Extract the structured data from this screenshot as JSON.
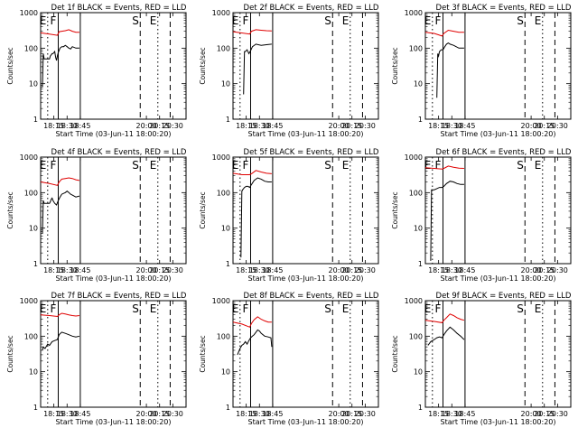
{
  "chart_data": {
    "type": "line",
    "log_y": true,
    "ylim": [
      1,
      1000
    ],
    "y_ticks": [
      1,
      10,
      100,
      1000
    ],
    "ylabel": "Counts/sec",
    "xlabel": "Start Time (03-Jun-11 18:00:20)",
    "x_tick_labels": [
      "18:15",
      "18:30",
      "18:45",
      "20:00",
      "20:15",
      "20:30"
    ],
    "x_tick_minutes": [
      15,
      30,
      45,
      120,
      135,
      150
    ],
    "xlim_minutes": [
      0,
      165
    ],
    "legend": "BLACK = Events, RED = LLD",
    "series_colors": {
      "Events": "#000000",
      "LLD": "#e00000"
    },
    "markers": [
      {
        "label": "E",
        "minute": 8,
        "style": "dotted"
      },
      {
        "label": "F",
        "minute": 20,
        "style": "solid"
      },
      {
        "label": "S",
        "minute": 113,
        "style": "dashed"
      },
      {
        "label": "E",
        "minute": 133,
        "style": "dotted"
      },
      {
        "label": "",
        "minute": 147,
        "style": "dashed"
      }
    ],
    "panels": [
      {
        "title": "Det 1f",
        "lld": {
          "x": [
            0,
            10,
            19,
            21,
            24,
            28,
            32,
            36,
            40,
            44
          ],
          "y": [
            270,
            250,
            230,
            290,
            300,
            310,
            330,
            300,
            280,
            280
          ]
        },
        "events": {
          "x": [
            2,
            3,
            4,
            10,
            11,
            13,
            14,
            16,
            17,
            18,
            19,
            20,
            22,
            24,
            26,
            28,
            30,
            32,
            34,
            36,
            40,
            44
          ],
          "y": [
            8,
            70,
            50,
            50,
            60,
            70,
            70,
            80,
            55,
            45,
            60,
            75,
            100,
            110,
            110,
            120,
            110,
            100,
            95,
            110,
            100,
            100
          ]
        }
      },
      {
        "title": "Det 2f",
        "lld": {
          "x": [
            0,
            19,
            21,
            26,
            32,
            38,
            44
          ],
          "y": [
            290,
            250,
            300,
            330,
            320,
            310,
            305
          ]
        },
        "events": {
          "x": [
            12,
            13,
            14,
            16,
            18,
            20,
            22,
            26,
            32,
            38,
            44
          ],
          "y": [
            5,
            80,
            80,
            90,
            70,
            85,
            110,
            130,
            120,
            125,
            130
          ]
        }
      },
      {
        "title": "Det 3f",
        "lld": {
          "x": [
            0,
            10,
            19,
            21,
            26,
            32,
            38,
            44
          ],
          "y": [
            280,
            260,
            220,
            260,
            320,
            300,
            280,
            280
          ]
        },
        "events": {
          "x": [
            13,
            14,
            15,
            16,
            18,
            20,
            22,
            24,
            26,
            28,
            32,
            38,
            44
          ],
          "y": [
            4,
            70,
            60,
            80,
            90,
            90,
            110,
            130,
            140,
            130,
            120,
            100,
            100
          ]
        }
      },
      {
        "title": "Det 4f",
        "lld": {
          "x": [
            0,
            10,
            19,
            21,
            24,
            28,
            32,
            36,
            40,
            44
          ],
          "y": [
            200,
            180,
            160,
            200,
            240,
            250,
            260,
            250,
            230,
            220
          ]
        },
        "events": {
          "x": [
            2,
            3,
            4,
            10,
            11,
            12,
            13,
            14,
            16,
            18,
            20,
            22,
            24,
            26,
            28,
            30,
            32,
            34,
            36,
            40,
            44
          ],
          "y": [
            7,
            60,
            50,
            50,
            55,
            65,
            70,
            60,
            50,
            45,
            60,
            75,
            90,
            95,
            100,
            110,
            100,
            90,
            85,
            75,
            80
          ]
        }
      },
      {
        "title": "Det 5f",
        "lld": {
          "x": [
            0,
            10,
            19,
            21,
            26,
            32,
            38,
            44
          ],
          "y": [
            350,
            320,
            320,
            340,
            420,
            380,
            350,
            340
          ]
        },
        "events": {
          "x": [
            9,
            10,
            11,
            13,
            15,
            17,
            19,
            21,
            24,
            28,
            32,
            36,
            40,
            44
          ],
          "y": [
            1.5,
            110,
            120,
            140,
            150,
            150,
            140,
            170,
            220,
            260,
            240,
            210,
            200,
            200
          ]
        }
      },
      {
        "title": "Det 6f",
        "lld": {
          "x": [
            0,
            10,
            19,
            21,
            26,
            32,
            38,
            44
          ],
          "y": [
            500,
            480,
            460,
            480,
            560,
            520,
            490,
            480
          ]
        },
        "events": {
          "x": [
            6,
            7,
            10,
            13,
            16,
            19,
            21,
            24,
            28,
            32,
            36,
            40,
            44
          ],
          "y": [
            1.2,
            120,
            120,
            130,
            140,
            140,
            150,
            180,
            210,
            200,
            180,
            170,
            170
          ]
        }
      },
      {
        "title": "Det 7f",
        "lld": {
          "x": [
            0,
            10,
            19,
            21,
            24,
            28,
            32,
            36,
            40,
            44
          ],
          "y": [
            400,
            380,
            360,
            400,
            440,
            420,
            400,
            380,
            370,
            380
          ]
        },
        "events": {
          "x": [
            2,
            3,
            5,
            8,
            10,
            13,
            16,
            19,
            21,
            24,
            28,
            32,
            36,
            40,
            44
          ],
          "y": [
            40,
            50,
            45,
            60,
            55,
            70,
            75,
            80,
            110,
            130,
            120,
            110,
            100,
            95,
            100
          ]
        }
      },
      {
        "title": "Det 8f",
        "lld": {
          "x": [
            0,
            10,
            19,
            21,
            24,
            28,
            32,
            36,
            40,
            44
          ],
          "y": [
            250,
            220,
            180,
            230,
            290,
            350,
            300,
            270,
            250,
            250
          ]
        },
        "events": {
          "x": [
            5,
            8,
            10,
            12,
            14,
            16,
            18,
            20,
            22,
            24,
            26,
            28,
            30,
            32,
            36,
            40,
            43,
            44
          ],
          "y": [
            30,
            45,
            55,
            60,
            70,
            60,
            75,
            90,
            100,
            110,
            130,
            150,
            140,
            120,
            100,
            95,
            90,
            50
          ]
        }
      },
      {
        "title": "Det 9f",
        "lld": {
          "x": [
            0,
            10,
            19,
            21,
            24,
            28,
            32,
            36,
            40,
            44
          ],
          "y": [
            280,
            260,
            240,
            280,
            330,
            420,
            380,
            330,
            300,
            280
          ]
        },
        "events": {
          "x": [
            3,
            6,
            10,
            13,
            16,
            19,
            21,
            24,
            28,
            32,
            36,
            40,
            44
          ],
          "y": [
            55,
            70,
            80,
            90,
            95,
            90,
            110,
            140,
            180,
            150,
            120,
            100,
            80
          ]
        }
      }
    ]
  }
}
